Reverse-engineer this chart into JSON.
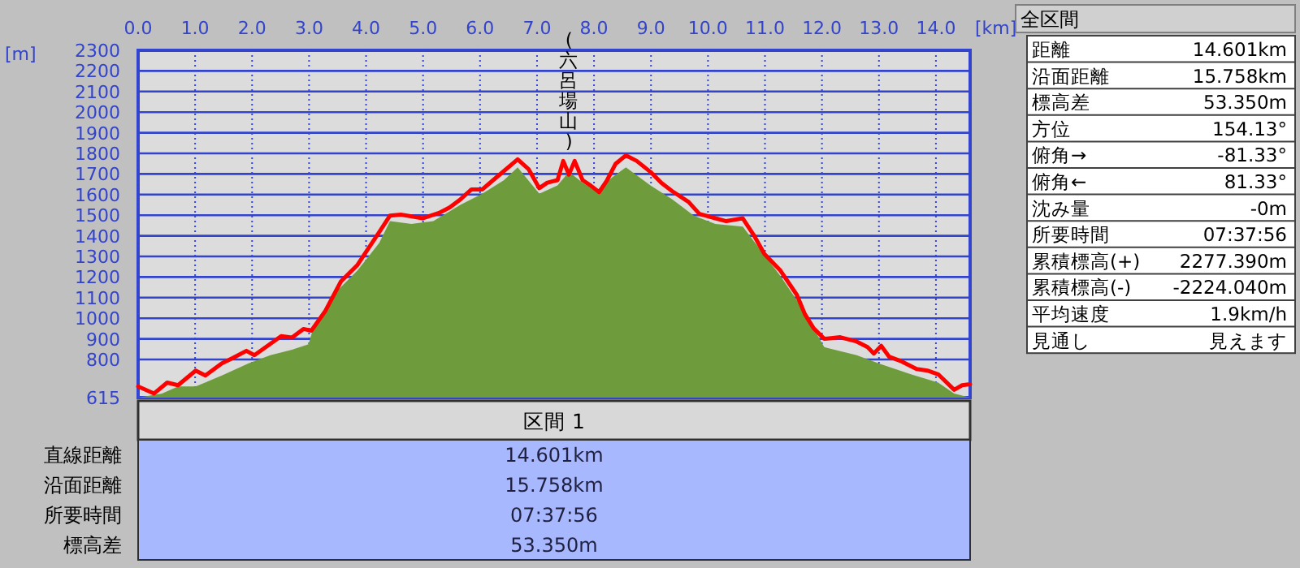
{
  "chart_data": [
    {
      "type": "line",
      "xlabel": "[km]",
      "ylabel": "[m]",
      "xlim": [
        0,
        14.6
      ],
      "ylim": [
        615,
        2300
      ],
      "xticks": [
        {
          "value": 0,
          "label": "0.0"
        },
        {
          "value": 1,
          "label": "1.0"
        },
        {
          "value": 2,
          "label": "2.0"
        },
        {
          "value": 3,
          "label": "3.0"
        },
        {
          "value": 4,
          "label": "4.0"
        },
        {
          "value": 5,
          "label": "5.0"
        },
        {
          "value": 6,
          "label": "6.0"
        },
        {
          "value": 7,
          "label": "7.0"
        },
        {
          "value": 8,
          "label": "8.0"
        },
        {
          "value": 9,
          "label": "9.0"
        },
        {
          "value": 10,
          "label": "10.0"
        },
        {
          "value": 11,
          "label": "11.0"
        },
        {
          "value": 12,
          "label": "12.0"
        },
        {
          "value": 13,
          "label": "13.0"
        },
        {
          "value": 14,
          "label": "14.0"
        }
      ],
      "yticks": [
        615,
        800,
        900,
        1000,
        1100,
        1200,
        1300,
        1400,
        1500,
        1600,
        1700,
        1800,
        1900,
        2000,
        2100,
        2200,
        2300
      ],
      "grid": true,
      "annotations": [
        {
          "text": "(六呂場山)",
          "x": 7.56,
          "y": 1763
        }
      ],
      "series": [
        {
          "type": "area",
          "color": "#6e9c3c",
          "x": [
            0,
            0.42,
            0.7,
            1.01,
            1.47,
            1.94,
            2.32,
            2.7,
            2.99,
            3.09,
            3.47,
            3.85,
            4.23,
            4.42,
            4.8,
            5.18,
            5.66,
            6.04,
            6.42,
            6.66,
            7.04,
            7.36,
            7.56,
            7.8,
            8.04,
            8.32,
            8.56,
            8.99,
            9.37,
            9.75,
            10.13,
            10.61,
            10.9,
            11.27,
            11.66,
            12.04,
            12.61,
            12.99,
            13.56,
            14.04,
            14.32,
            14.6
          ],
          "values": [
            615,
            635,
            669,
            669,
            722,
            781,
            821,
            847,
            874,
            967,
            1127,
            1232,
            1365,
            1471,
            1458,
            1471,
            1551,
            1604,
            1670,
            1732,
            1604,
            1644,
            1710,
            1657,
            1617,
            1684,
            1732,
            1644,
            1578,
            1498,
            1458,
            1445,
            1339,
            1206,
            1046,
            860,
            821,
            781,
            728,
            688,
            635,
            615
          ]
        },
        {
          "type": "line",
          "color": "#ff0000",
          "x": [
            0,
            0.28,
            0.51,
            0.7,
            1.01,
            1.18,
            1.47,
            1.66,
            1.9,
            2.04,
            2.28,
            2.51,
            2.7,
            2.9,
            3.04,
            3.28,
            3.56,
            3.85,
            4.04,
            4.23,
            4.42,
            4.61,
            4.99,
            5.28,
            5.47,
            5.66,
            5.85,
            6.04,
            6.23,
            6.66,
            6.85,
            7.04,
            7.18,
            7.36,
            7.46,
            7.56,
            7.66,
            7.8,
            7.94,
            8.09,
            8.23,
            8.38,
            8.56,
            8.75,
            8.99,
            9.18,
            9.37,
            9.66,
            9.85,
            10.13,
            10.32,
            10.61,
            10.8,
            10.99,
            11.27,
            11.56,
            11.7,
            11.85,
            12.04,
            12.32,
            12.61,
            12.8,
            12.91,
            13.04,
            13.18,
            13.37,
            13.66,
            13.85,
            14.04,
            14.32,
            14.46,
            14.6
          ],
          "values": [
            669,
            635,
            688,
            675,
            746,
            722,
            781,
            807,
            842,
            821,
            868,
            913,
            906,
            948,
            940,
            1033,
            1179,
            1259,
            1339,
            1418,
            1498,
            1503,
            1485,
            1511,
            1538,
            1578,
            1625,
            1625,
            1670,
            1771,
            1724,
            1631,
            1658,
            1670,
            1763,
            1697,
            1763,
            1670,
            1644,
            1612,
            1670,
            1750,
            1790,
            1763,
            1710,
            1657,
            1617,
            1564,
            1506,
            1485,
            1471,
            1485,
            1405,
            1312,
            1232,
            1113,
            1020,
            953,
            900,
            908,
            887,
            860,
            829,
            866,
            813,
            794,
            754,
            746,
            728,
            653,
            675,
            680
          ]
        }
      ]
    },
    {
      "type": "other",
      "title": "全区間",
      "categories": [
        "距離",
        "沿面距離",
        "標高差",
        "方位",
        "俯角→",
        "俯角←",
        "沈み量",
        "所要時間",
        "累積標高(+)",
        "累積標高(-)",
        "平均速度",
        "見通し"
      ],
      "annotations": [
        "14.601km",
        "15.758km",
        "53.350m",
        "154.13°",
        "-81.33°",
        "81.33°",
        "-0m",
        "07:37:56",
        "2277.390m",
        "-2224.040m",
        "1.9km/h",
        "見えます"
      ]
    },
    {
      "type": "other",
      "title": "区間 1",
      "categories": [
        "直線距離",
        "沿面距離",
        "所要時間",
        "標高差"
      ],
      "annotations": [
        "14.601km",
        "15.758km",
        "07:37:56",
        "53.350m"
      ]
    }
  ]
}
